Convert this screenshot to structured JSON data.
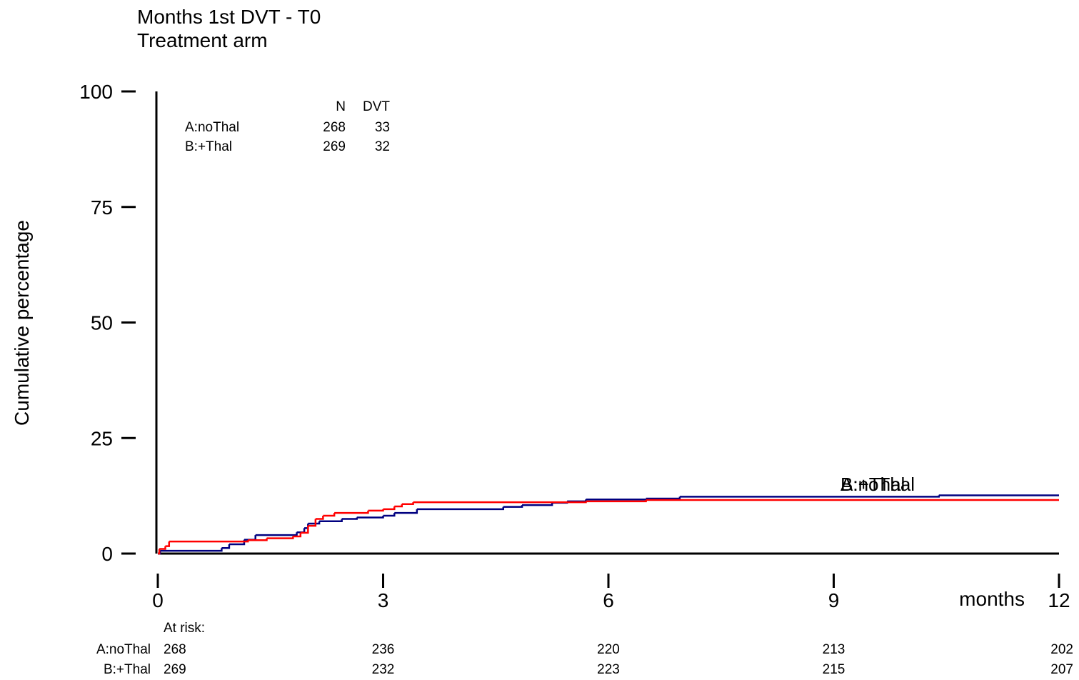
{
  "chart_data": {
    "type": "step",
    "title": "Months 1st DVT - T0",
    "subtitle": "Treatment arm",
    "ylabel": "Cumulative percentage",
    "xlabel": "months",
    "xlim": [
      0,
      12
    ],
    "xticks": [
      0,
      3,
      6,
      9,
      12
    ],
    "ylim": [
      0,
      100
    ],
    "yticks": [
      0,
      25,
      50,
      75,
      100
    ],
    "series": [
      {
        "name": "A:noThal",
        "color": "#000080",
        "x": [
          0,
          0.03,
          0.85,
          0.95,
          1.15,
          1.3,
          1.85,
          1.95,
          2.0,
          2.15,
          2.45,
          2.65,
          3.0,
          3.15,
          3.45,
          4.6,
          4.85,
          5.25,
          5.45,
          5.7,
          6.5,
          6.95,
          10.4,
          12
        ],
        "values": [
          0,
          0.6,
          1.2,
          2.0,
          3.0,
          4.0,
          4.6,
          5.5,
          6.5,
          7.0,
          7.5,
          7.8,
          8.2,
          8.8,
          9.6,
          10.1,
          10.5,
          11.0,
          11.3,
          11.7,
          11.9,
          12.3,
          12.6,
          12.6
        ]
      },
      {
        "name": "B:+Thal",
        "color": "#ff0000",
        "x": [
          0,
          0.02,
          0.1,
          0.15,
          1.2,
          1.45,
          1.8,
          1.9,
          2.0,
          2.1,
          2.2,
          2.35,
          2.8,
          3.0,
          3.15,
          3.25,
          3.4,
          5.7,
          6.5,
          12
        ],
        "values": [
          0,
          1.0,
          1.6,
          2.6,
          2.9,
          3.3,
          3.7,
          4.5,
          6.0,
          7.5,
          8.2,
          8.8,
          9.3,
          9.6,
          10.2,
          10.7,
          11.1,
          11.3,
          11.6,
          11.6
        ]
      }
    ],
    "legend_table": {
      "header": [
        "N",
        "DVT"
      ],
      "rows": [
        {
          "name": "A:noThal",
          "cells": [
            268,
            33
          ]
        },
        {
          "name": "B:+Thal",
          "cells": [
            269,
            32
          ]
        }
      ]
    },
    "at_risk": {
      "label": "At risk:",
      "rows": [
        {
          "name": "A:noThal",
          "values": [
            268,
            236,
            220,
            213,
            202
          ]
        },
        {
          "name": "B:+Thal",
          "values": [
            269,
            232,
            223,
            215,
            207
          ]
        }
      ]
    }
  }
}
